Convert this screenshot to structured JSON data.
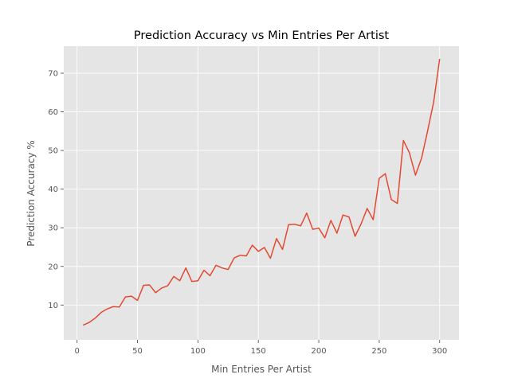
{
  "chart_data": {
    "type": "line",
    "title": "Prediction Accuracy vs Min Entries Per Artist",
    "xlabel": "Min Entries Per Artist",
    "ylabel": "Prediction Accuracy %",
    "xlim": [
      -11,
      316
    ],
    "ylim": [
      1,
      77
    ],
    "xticks": [
      0,
      50,
      100,
      150,
      200,
      250,
      300
    ],
    "yticks": [
      10,
      20,
      30,
      40,
      50,
      60,
      70
    ],
    "grid": true,
    "legend": "none",
    "style": {
      "background": "#e5e5e5",
      "grid_color": "#ffffff",
      "line_color": "#e24a33"
    },
    "series": [
      {
        "x": [
          5,
          10,
          15,
          20,
          25,
          30,
          35,
          40,
          45,
          50,
          55,
          60,
          65,
          70,
          75,
          80,
          85,
          90,
          95,
          100,
          105,
          110,
          115,
          120,
          125,
          130,
          135,
          140,
          145,
          150,
          155,
          160,
          165,
          170,
          175,
          180,
          185,
          190,
          195,
          200,
          205,
          210,
          215,
          220,
          225,
          230,
          235,
          240,
          245,
          250,
          255,
          260,
          265,
          270,
          275,
          280,
          285,
          290,
          295,
          300
        ],
        "values": [
          4.8,
          5.5,
          6.6,
          8.1,
          9.0,
          9.6,
          9.5,
          12.1,
          12.3,
          11.2,
          15.1,
          15.2,
          13.2,
          14.4,
          15.0,
          17.4,
          16.3,
          19.6,
          16.1,
          16.3,
          19.0,
          17.6,
          20.3,
          19.6,
          19.2,
          22.2,
          22.9,
          22.7,
          25.5,
          23.9,
          24.9,
          22.1,
          27.2,
          24.4,
          30.8,
          30.9,
          30.5,
          33.8,
          29.6,
          29.9,
          27.4,
          31.9,
          28.6,
          33.3,
          32.8,
          27.8,
          31.0,
          35.0,
          32.1,
          42.8,
          44.0,
          37.3,
          36.3,
          52.6,
          49.4,
          43.6,
          48.0,
          55.0,
          62.5,
          73.7
        ]
      }
    ]
  }
}
